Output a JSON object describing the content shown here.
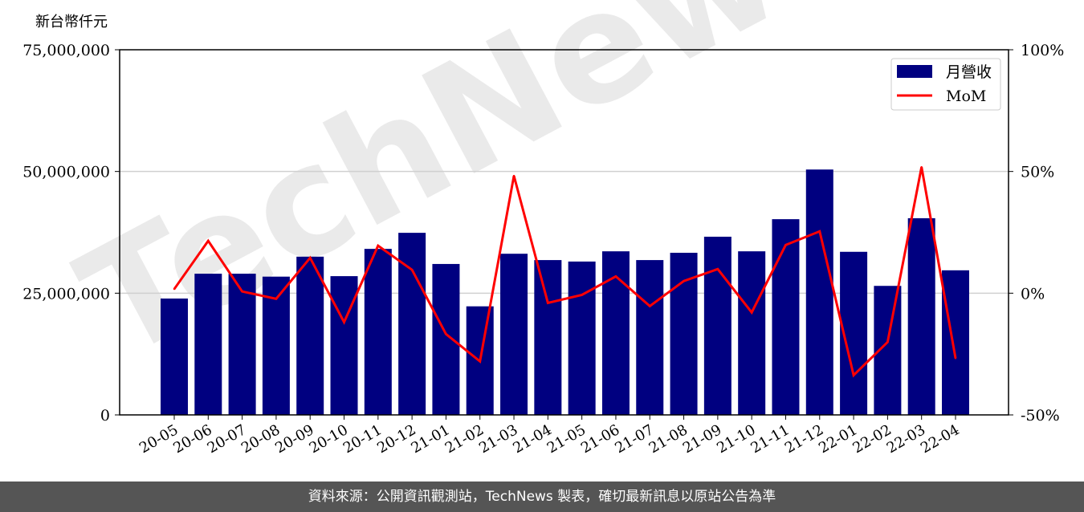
{
  "chart_data": {
    "type": "bar+line",
    "ylabel_left": "新台幣仟元",
    "left_ticks": [
      "0",
      "25,000,000",
      "50,000,000",
      "75,000,000"
    ],
    "right_ticks": [
      "-50%",
      "0%",
      "50%",
      "100%"
    ],
    "ylim_left": [
      0,
      75000000
    ],
    "ylim_right": [
      -50,
      100
    ],
    "grid": "horizontal",
    "legend_placement": "top-right",
    "categories": [
      "20-05",
      "20-06",
      "20-07",
      "20-08",
      "20-09",
      "20-10",
      "20-11",
      "20-12",
      "21-01",
      "21-02",
      "21-03",
      "21-04",
      "21-05",
      "21-06",
      "21-07",
      "21-08",
      "21-09",
      "21-10",
      "21-11",
      "21-12",
      "22-01",
      "22-02",
      "22-03",
      "22-04"
    ],
    "series": [
      {
        "name": "月營收",
        "type": "bar",
        "color": "#000080",
        "axis": "left",
        "values": [
          23900000,
          29000000,
          29000000,
          28400000,
          32500000,
          28500000,
          34100000,
          37400000,
          31000000,
          22300000,
          33100000,
          31800000,
          31500000,
          33600000,
          31800000,
          33300000,
          36600000,
          33600000,
          40200000,
          50400000,
          33500000,
          26500000,
          40400000,
          29700000
        ]
      },
      {
        "name": "MoM",
        "type": "line",
        "color": "#ff0000",
        "axis": "right",
        "values": [
          1.7,
          21.5,
          0.7,
          -2.3,
          14.5,
          -11.9,
          19.5,
          9.6,
          -16.8,
          -28.0,
          48.2,
          -4.0,
          -0.7,
          6.9,
          -5.3,
          5.0,
          9.9,
          -7.9,
          19.8,
          25.4,
          -33.7,
          -20.1,
          51.8,
          -26.7
        ]
      }
    ]
  },
  "watermark": "TechNews",
  "footer": "資料來源：公開資訊觀測站，TechNews 製表，確切最新訊息以原站公告為準"
}
